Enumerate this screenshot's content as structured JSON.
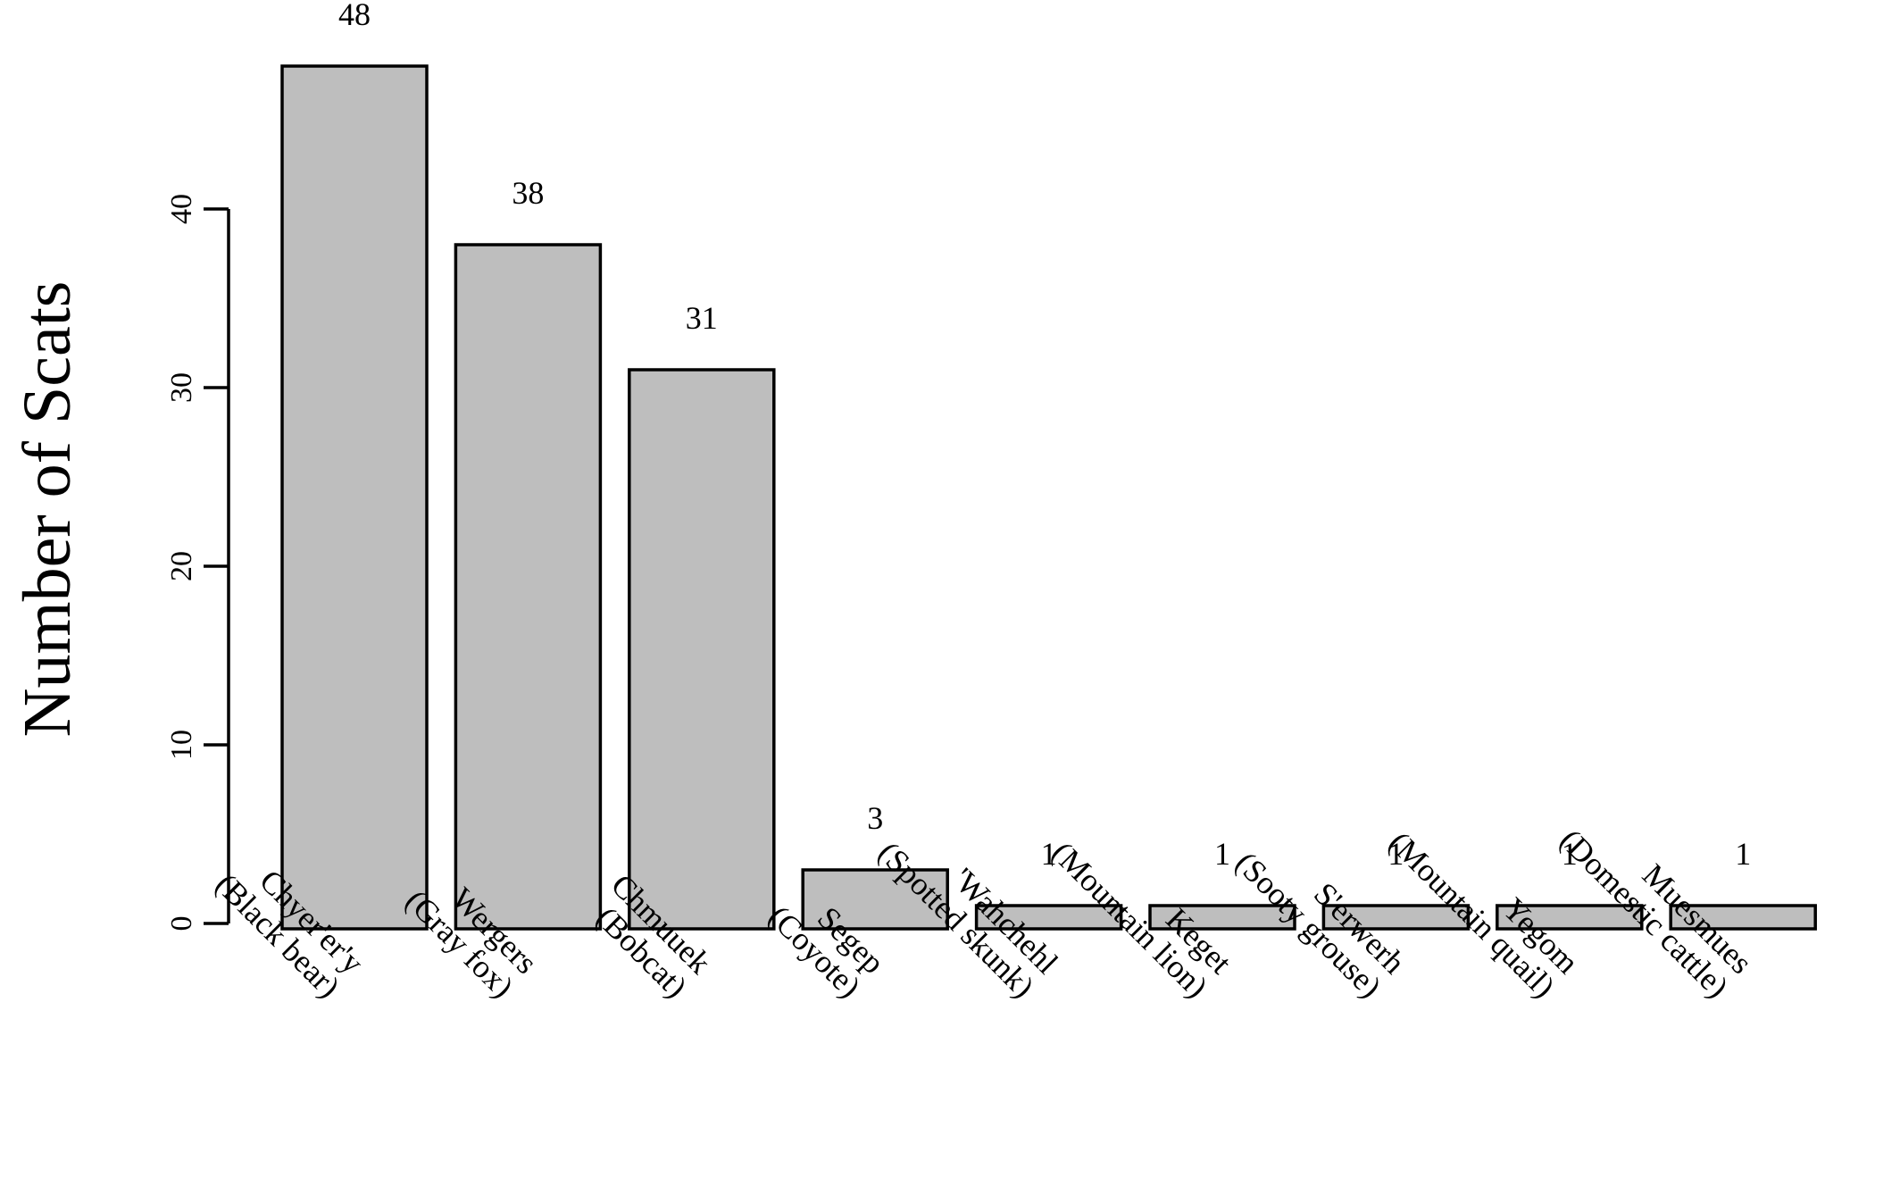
{
  "chart_data": {
    "type": "bar",
    "categories": [
      [
        "Chyer'er'y",
        "(Black bear)"
      ],
      [
        "Wergers",
        "(Gray fox)"
      ],
      [
        "Chmuuek",
        "(Bobcat)"
      ],
      [
        "Segep",
        "(Coyote)"
      ],
      [
        "'Wahchehl",
        "(Spotted skunk)"
      ],
      [
        "Keget",
        "(Mountain lion)"
      ],
      [
        "S'erwerh",
        "(Sooty grouse)"
      ],
      [
        "Yegom",
        "(Mountain quail)"
      ],
      [
        "Muesmues",
        "(Domestic cattle)"
      ]
    ],
    "values": [
      48,
      38,
      31,
      3,
      1,
      1,
      1,
      1,
      1
    ],
    "data_labels": [
      "48",
      "38",
      "31",
      "3",
      "1",
      "1",
      "1",
      "1",
      "1"
    ],
    "title": "",
    "xlabel": "",
    "ylabel": "Number of Scats",
    "ylim": [
      0,
      48
    ],
    "yticks": [
      0,
      10,
      20,
      30,
      40
    ],
    "ytick_labels": [
      "0",
      "10",
      "20",
      "30",
      "40"
    ],
    "grid": false,
    "legend": "none",
    "bar_color": "#bebebe",
    "edge_color": "#000000"
  }
}
